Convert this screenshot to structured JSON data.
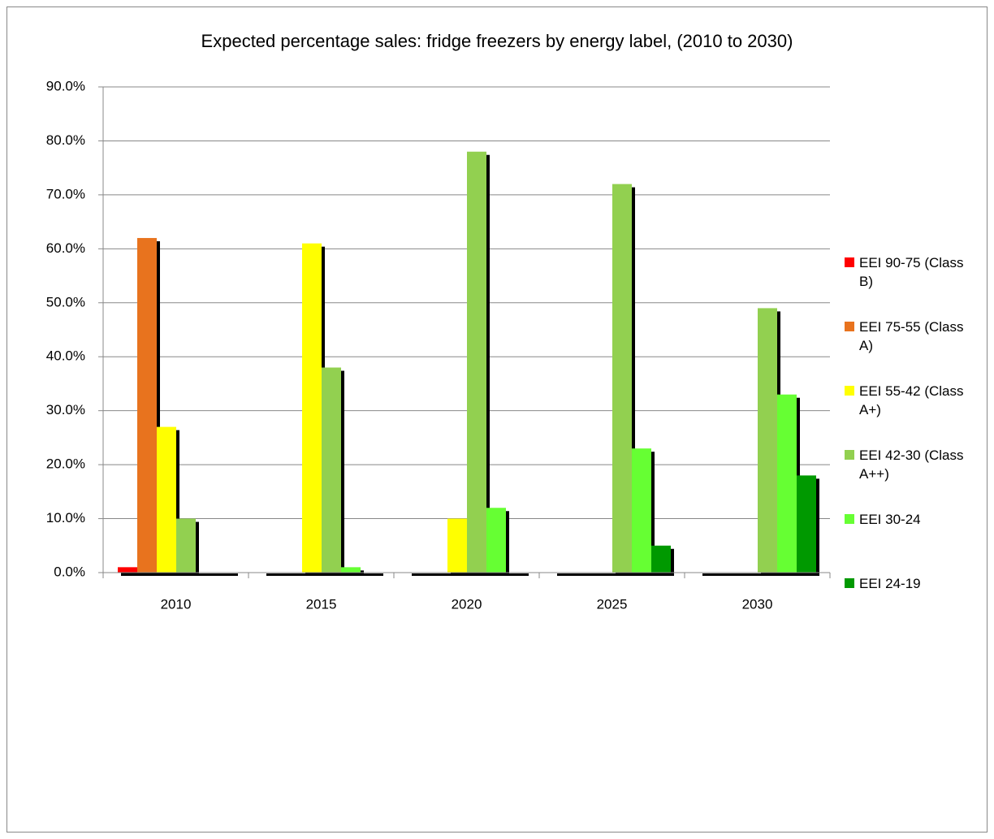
{
  "chart_data": {
    "type": "bar",
    "title": "Expected percentage sales: fridge freezers by energy label, (2010 to 2030)",
    "categories": [
      "2010",
      "2015",
      "2020",
      "2025",
      "2030"
    ],
    "series": [
      {
        "name": "EEI 90-75 (Class B)",
        "color": "#ff0000",
        "values": [
          1,
          0,
          0,
          0,
          0
        ]
      },
      {
        "name": "EEI 75-55 (Class A)",
        "color": "#e8731e",
        "values": [
          62,
          0,
          0,
          0,
          0
        ]
      },
      {
        "name": "EEI 55-42 (Class A+)",
        "color": "#ffff00",
        "values": [
          27,
          61,
          10,
          0,
          0
        ]
      },
      {
        "name": "EEI 42-30 (Class A++)",
        "color": "#92d050",
        "values": [
          10,
          38,
          78,
          72,
          49
        ]
      },
      {
        "name": "EEI 30-24",
        "color": "#66ff33",
        "values": [
          0,
          1,
          12,
          23,
          33
        ]
      },
      {
        "name": "EEI 24-19",
        "color": "#009900",
        "values": [
          0,
          0,
          0,
          5,
          18
        ]
      }
    ],
    "ylim": [
      0,
      90
    ],
    "yticks": [
      {
        "value": 0,
        "label": "0.0%"
      },
      {
        "value": 10,
        "label": "10.0%"
      },
      {
        "value": 20,
        "label": "20.0%"
      },
      {
        "value": 30,
        "label": "30.0%"
      },
      {
        "value": 40,
        "label": "40.0%"
      },
      {
        "value": 50,
        "label": "50.0%"
      },
      {
        "value": 60,
        "label": "60.0%"
      },
      {
        "value": 70,
        "label": "70.0%"
      },
      {
        "value": 80,
        "label": "80.0%"
      },
      {
        "value": 90,
        "label": "90.0%"
      }
    ],
    "grid": true,
    "legend": "right"
  }
}
